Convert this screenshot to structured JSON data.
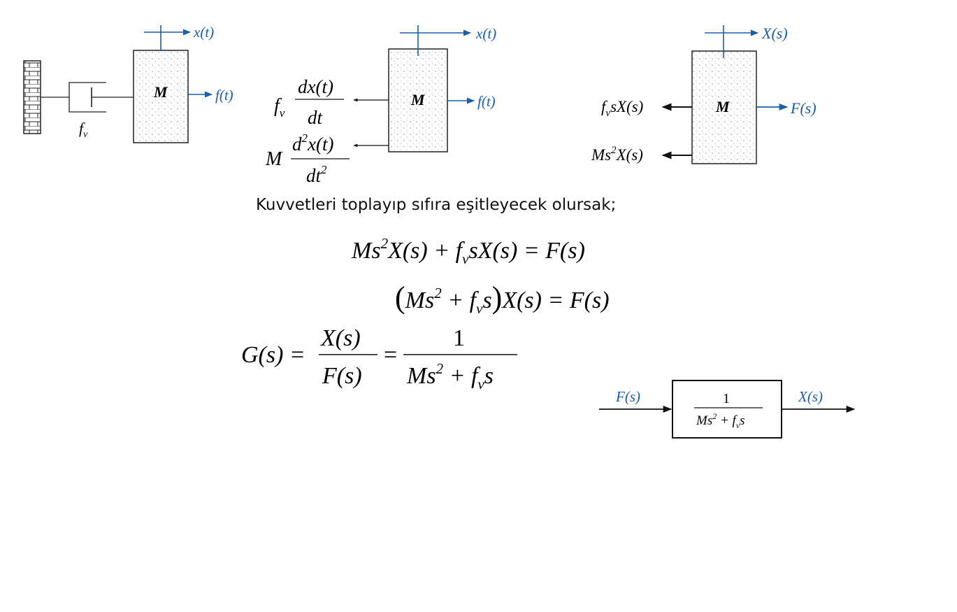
{
  "caption": "Kuvvetleri toplayıp sıfıra eşitleyecek olursak;",
  "diagram1": {
    "mass": "M",
    "damper": "f",
    "damper_sub": "v",
    "disp": "x(t)",
    "force": "f(t)"
  },
  "diagram2": {
    "mass": "M",
    "disp": "x(t)",
    "force": "f(t)",
    "damping_coef": "f",
    "damping_sub": "v",
    "damping_num": "dx(t)",
    "damping_den": "dt",
    "inertia_coef": "M",
    "inertia_num_d": "d",
    "inertia_num_sup": "2",
    "inertia_num_x": "x(t)",
    "inertia_den": "dt",
    "inertia_den_sup": "2"
  },
  "diagram3": {
    "mass": "M",
    "disp": "X(s)",
    "force": "F(s)",
    "damping_f": "f",
    "damping_sub": "v",
    "damping_rest": "sX(s)",
    "inertia_m": "Ms",
    "inertia_sup": "2",
    "inertia_rest": "X(s)"
  },
  "equation1": {
    "a": "Ms",
    "a_sup": "2",
    "b": "X(s) + f",
    "b_sub": "v",
    "c": "sX(s)  = F(s)"
  },
  "equation2": {
    "open": "(",
    "a": "Ms",
    "a_sup": "2",
    "b": " + f",
    "b_sub": "v",
    "c": "s",
    "close": ")",
    "d": "X(s) = F(s)"
  },
  "equation3": {
    "lhs": "G(s) =",
    "frac1_num": "X(s)",
    "frac1_den": "F(s)",
    "eq": "=",
    "frac2_num": "1",
    "frac2_den_a": "Ms",
    "frac2_den_sup": "2",
    "frac2_den_b": " + f",
    "frac2_den_sub": "v",
    "frac2_den_c": "s"
  },
  "block": {
    "input": "F(s)",
    "output": "X(s)",
    "num": "1",
    "den_a": "Ms",
    "den_sup": "2",
    "den_b": " + f",
    "den_sub": "v",
    "den_c": "s"
  },
  "colors": {
    "label_blue": "#1a5fa8",
    "arrow_blue": "#1a5fa8",
    "text": "#111111"
  }
}
